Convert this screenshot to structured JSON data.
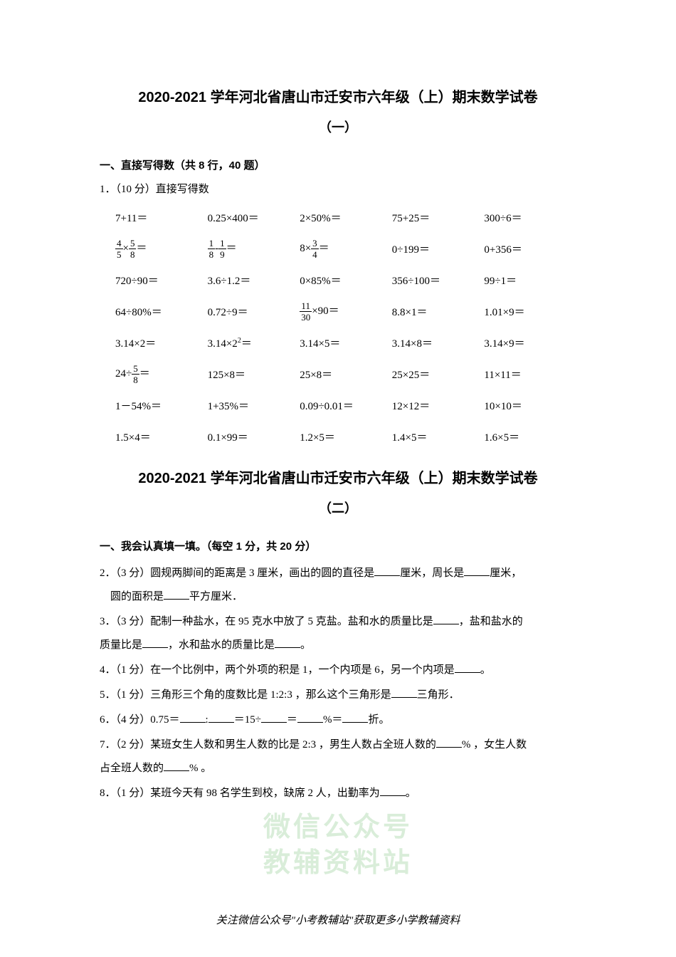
{
  "title1": "2020-2021 学年河北省唐山市迁安市六年级（上）期末数学试卷",
  "subtitle1": "（一）",
  "section1_heading": "一、直接写得数（共 8 行，40 题）",
  "q1_intro": "1．（10 分）直接写得数",
  "math_rows": [
    [
      "7+11＝",
      "0.25×400＝",
      "2×50%＝",
      "75+25＝",
      "300÷6＝"
    ],
    [
      "FRAC45×FRAC58＝",
      "FRAC18_MINUS_FRAC19＝",
      "8×FRAC34＝",
      "0÷199＝",
      "0+356＝"
    ],
    [
      "720÷90＝",
      "3.6÷1.2＝",
      "0×85%＝",
      "356÷100＝",
      "99÷1＝"
    ],
    [
      "64÷80%＝",
      "0.72÷9＝",
      "FRAC1130×90＝",
      "8.8×1＝",
      "1.01×9＝"
    ],
    [
      "3.14×2＝",
      "3.14×2SUP2＝",
      "3.14×5＝",
      "3.14×8＝",
      "3.14×9＝"
    ],
    [
      "24÷FRAC58＝",
      "125×8＝",
      "25×8＝",
      "25×25＝",
      "11×11＝"
    ],
    [
      "1－54%＝",
      "1+35%＝",
      "0.09÷0.01＝",
      "12×12＝",
      "10×10＝"
    ],
    [
      "1.5×4＝",
      "0.1×99＝",
      "1.2×5＝",
      "1.4×5＝",
      "1.6×5＝"
    ]
  ],
  "title2": "2020-2021 学年河北省唐山市迁安市六年级（上）期末数学试卷",
  "subtitle2": "（二）",
  "section2_heading": "一、我会认真填一填。（每空 1 分，共 20 分）",
  "q2_a": "2．（3 分）圆规两脚间的距离是 3 厘米，画出的圆的直径是",
  "q2_b": "厘米，周长是",
  "q2_c": "厘米，",
  "q2_d": "圆的面积是",
  "q2_e": "平方厘米．",
  "q3_a": "3．（3 分）配制一种盐水，在 95 克水中放了 5 克盐。盐和水的质量比是",
  "q3_b": "，盐和盐水的",
  "q3_c": "质量比是",
  "q3_d": "，水和盐水的质量比是",
  "q3_e": "。",
  "q4_a": "4．（1 分）在一个比例中，两个外项的积是 1，一个内项是 6，另一个内项是",
  "q4_b": "。",
  "q5_a": "5．（1 分）三角形三个角的度数比是 1:2:3 ，那么这个三角形是",
  "q5_b": "三角形．",
  "q6_a": "6．（4 分）0.75＝",
  "q6_b": ":",
  "q6_c": "＝15÷",
  "q6_d": "＝",
  "q6_e": "%＝",
  "q6_f": "折。",
  "q7_a": "7．（2 分）某班女生人数和男生人数的比是 2:3 ，男生人数占全班人数的",
  "q7_b": "% ，女生人数",
  "q7_c": "占全班人数的",
  "q7_d": "% 。",
  "q8_a": "8．（1 分）某班今天有 98 名学生到校，缺席 2 人，出勤率为",
  "q8_b": "。",
  "watermark1": "微信公众号",
  "watermark2": "教辅资料站",
  "footer": "关注微信公众号\"小考教辅站\"获取更多小学教辅资料"
}
